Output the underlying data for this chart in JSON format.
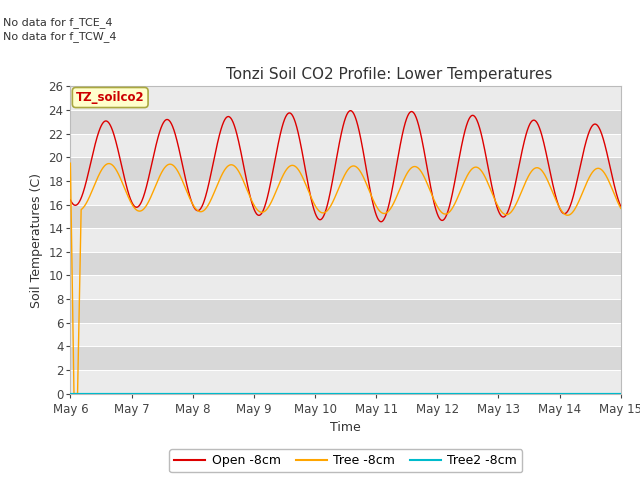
{
  "title": "Tonzi Soil CO2 Profile: Lower Temperatures",
  "xlabel": "Time",
  "ylabel": "Soil Temperatures (C)",
  "ylim": [
    0,
    26
  ],
  "xlim": [
    0,
    9
  ],
  "no_data_lines": [
    "No data for f_TCE_4",
    "No data for f_TCW_4"
  ],
  "station_label": "TZ_soilco2",
  "xtick_labels": [
    "May 6",
    "May 7",
    "May 8",
    "May 9",
    "May 10",
    "May 11",
    "May 12",
    "May 13",
    "May 14",
    "May 15"
  ],
  "xtick_positions": [
    0,
    1,
    2,
    3,
    4,
    5,
    6,
    7,
    8,
    9
  ],
  "ytick_positions": [
    0,
    2,
    4,
    6,
    8,
    10,
    12,
    14,
    16,
    18,
    20,
    22,
    24,
    26
  ],
  "legend_labels": [
    "Open -8cm",
    "Tree -8cm",
    "Tree2 -8cm"
  ],
  "line_colors": [
    "#dd0000",
    "#ffa500",
    "#00bbcc"
  ],
  "bg_color_light": "#ebebeb",
  "bg_color_dark": "#d8d8d8",
  "grid_color": "#ffffff",
  "station_label_color": "#cc0000",
  "station_box_facecolor": "#ffffcc",
  "station_box_edgecolor": "#aaa840"
}
